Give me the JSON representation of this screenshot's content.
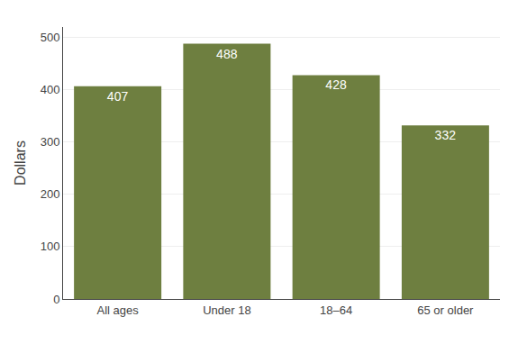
{
  "chart_data": {
    "type": "bar",
    "ylabel": "Dollars",
    "categories": [
      "All ages",
      "Under 18",
      "18–64",
      "65 or older"
    ],
    "values": [
      407,
      488,
      428,
      332
    ],
    "color": "#6e7f40",
    "ylim": [
      0,
      520
    ],
    "yticks": [
      0,
      100,
      200,
      300,
      400,
      500
    ],
    "grid": true,
    "data_labels": true
  }
}
